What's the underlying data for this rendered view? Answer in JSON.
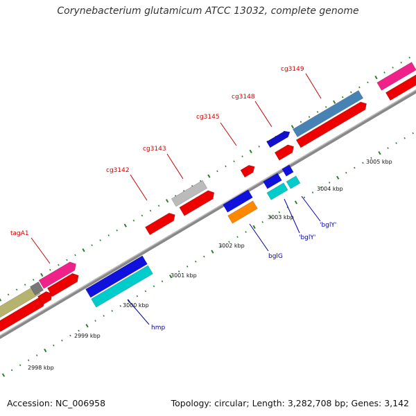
{
  "title": "Corynebacterium glutamicum ATCC 13032, complete genome",
  "footer": {
    "accession": "Accession: NC_006958",
    "topology": "Topology: circular; Length: 3,282,708 bp; Genes: 3,142"
  },
  "colors": {
    "backbone": "#888888",
    "tick": "#2e7d2e",
    "label_red": "#cc0000",
    "label_blue": "#0000aa"
  },
  "ticks": [
    {
      "label": "2998 kbp"
    },
    {
      "label": "2999 kbp"
    },
    {
      "label": "3000 kbp"
    },
    {
      "label": "3001 kbp"
    },
    {
      "label": "3002 kbp"
    },
    {
      "label": "3003 kbp"
    },
    {
      "label": "3004 kbp"
    },
    {
      "label": "3005 kbp"
    }
  ],
  "genes_upper": [
    {
      "label": "tagA1",
      "color": "#ee2288"
    },
    {
      "label": "cg3142",
      "color": "#ee0000"
    },
    {
      "label": "cg3143",
      "color": "#bbbbbb"
    },
    {
      "label": "cg3145",
      "color": "#ee0000"
    },
    {
      "label": "cg3148",
      "color": "#1111cc"
    },
    {
      "label": "cg3149",
      "color": "#4682b4"
    }
  ],
  "genes_lower": [
    {
      "label": "hmp",
      "color": "#00cccc"
    },
    {
      "label": "bglG",
      "color": "#ff8800"
    },
    {
      "label": "'bglY'",
      "color": "#00cccc"
    },
    {
      "label": "'bglY'",
      "color": "#00cccc"
    }
  ]
}
